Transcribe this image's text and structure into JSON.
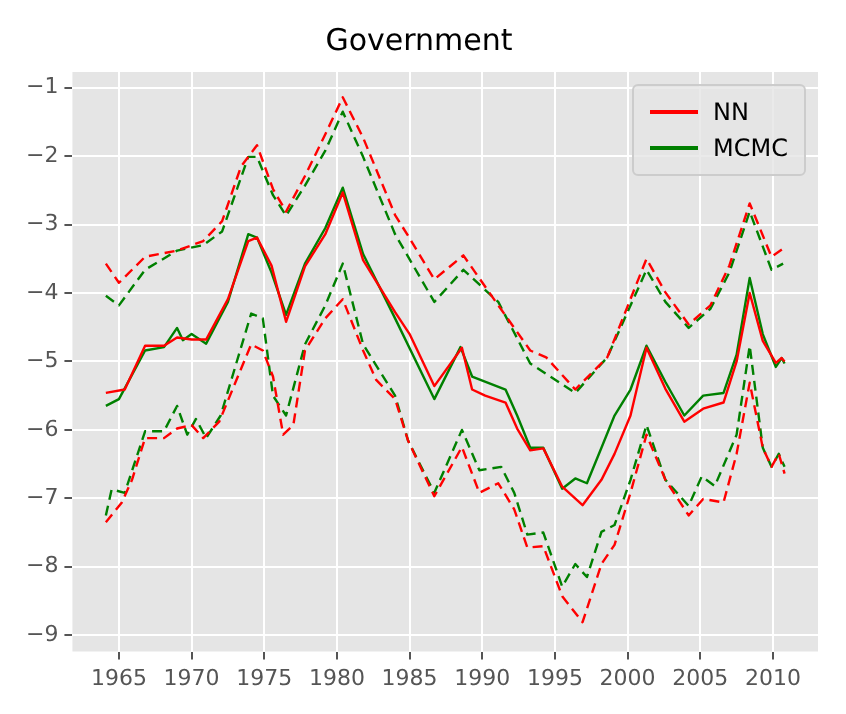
{
  "chart_data": {
    "type": "line",
    "title": "Government",
    "xlim": [
      1961.8,
      2013.1
    ],
    "ylim": [
      -9.24,
      -0.77
    ],
    "xticks": [
      1965,
      1970,
      1975,
      1980,
      1985,
      1990,
      1995,
      2000,
      2005,
      2010
    ],
    "yticks": [
      -9,
      -8,
      -7,
      -6,
      -5,
      -4,
      -3,
      -2,
      -1
    ],
    "grid": true,
    "legend": "top right",
    "series": [
      {
        "name": "NN",
        "color": "#ff0000",
        "line_style": "solid",
        "x": [
          1964.1,
          1965.4,
          1966.8,
          1968.1,
          1969,
          1970,
          1971,
          1972.5,
          1973.9,
          1974.5,
          1975.5,
          1976.5,
          1977.8,
          1979.2,
          1980.4,
          1981.8,
          1984,
          1985,
          1986.7,
          1988.6,
          1989.3,
          1990.2,
          1991.6,
          1992.4,
          1993.3,
          1994.2,
          1995.5,
          1996.9,
          1998.2,
          1999.1,
          2000.2,
          2001.3,
          2002.6,
          2003.9,
          2005.2,
          2006.6,
          2007.5,
          2008.4,
          2009.3,
          2010.2,
          2010.6,
          2010.8
        ],
        "values": [
          -5.46,
          -5.41,
          -4.77,
          -4.77,
          -4.65,
          -4.68,
          -4.68,
          -4.09,
          -3.24,
          -3.19,
          -3.6,
          -4.42,
          -3.61,
          -3.14,
          -2.53,
          -3.52,
          -4.28,
          -4.6,
          -5.36,
          -4.8,
          -5.41,
          -5.5,
          -5.6,
          -5.98,
          -6.3,
          -6.27,
          -6.83,
          -7.1,
          -6.73,
          -6.35,
          -5.79,
          -4.8,
          -5.4,
          -5.88,
          -5.69,
          -5.6,
          -5.0,
          -4.0,
          -4.7,
          -5.02,
          -4.95,
          -5.0
        ]
      },
      {
        "name": "MCMC",
        "color": "#008000",
        "line_style": "solid",
        "x": [
          1964.1,
          1965,
          1966.8,
          1968.1,
          1969,
          1969.4,
          1970,
          1971,
          1972.5,
          1973.9,
          1974.5,
          1975.5,
          1976.5,
          1977.8,
          1979.2,
          1980.4,
          1981.8,
          1984,
          1986.7,
          1988.5,
          1989.3,
          1991.6,
          1992.4,
          1993.3,
          1994.2,
          1995.5,
          1996.4,
          1997.2,
          1998.2,
          1999.1,
          2000.2,
          2001.3,
          2002.6,
          2003.9,
          2005.2,
          2006.6,
          2007.5,
          2008.4,
          2009.3,
          2010.2,
          2010.6,
          2010.8
        ],
        "values": [
          -5.65,
          -5.55,
          -4.84,
          -4.79,
          -4.51,
          -4.69,
          -4.6,
          -4.74,
          -4.13,
          -3.14,
          -3.19,
          -3.7,
          -4.32,
          -3.57,
          -3.05,
          -2.46,
          -3.43,
          -4.37,
          -5.55,
          -4.79,
          -5.22,
          -5.41,
          -5.79,
          -6.26,
          -6.26,
          -6.86,
          -6.71,
          -6.78,
          -6.26,
          -5.79,
          -5.41,
          -4.77,
          -5.3,
          -5.79,
          -5.5,
          -5.46,
          -4.9,
          -3.78,
          -4.6,
          -5.08,
          -4.95,
          -5.03
        ]
      },
      {
        "color": "#ff0000",
        "line_style": "dashed",
        "x": [
          1964.1,
          1965,
          1966.8,
          1969,
          1970.8,
          1972.1,
          1973.4,
          1974.5,
          1975.6,
          1976.5,
          1977.8,
          1979.2,
          1980.4,
          1981.8,
          1984,
          1985,
          1986.7,
          1988.7,
          1991.1,
          1993.3,
          1994.4,
          1996.4,
          1998.6,
          2001.3,
          2002.6,
          2004.2,
          2005.7,
          2007,
          2008.4,
          2009.9,
          2010.7
        ],
        "values": [
          -3.57,
          -3.85,
          -3.47,
          -3.38,
          -3.24,
          -2.95,
          -2.15,
          -1.84,
          -2.48,
          -2.81,
          -2.29,
          -1.68,
          -1.14,
          -1.73,
          -2.86,
          -3.2,
          -3.8,
          -3.45,
          -4.18,
          -4.84,
          -4.94,
          -5.41,
          -4.94,
          -3.5,
          -3.99,
          -4.46,
          -4.18,
          -3.6,
          -2.69,
          -3.47,
          -3.35
        ]
      },
      {
        "color": "#008000",
        "line_style": "dashed",
        "x": [
          1964.1,
          1965,
          1966.8,
          1969,
          1970.8,
          1972.1,
          1973.9,
          1974.5,
          1975.6,
          1976.5,
          1977.8,
          1979.2,
          1980.4,
          1981.8,
          1984,
          1986.7,
          1988.7,
          1991.1,
          1993.3,
          1996.4,
          1998.6,
          2001.3,
          2002.6,
          2004.2,
          2005.7,
          2007,
          2008.4,
          2009.9,
          2010.7
        ],
        "values": [
          -4.04,
          -4.18,
          -3.66,
          -3.38,
          -3.3,
          -3.1,
          -2.01,
          -2.01,
          -2.57,
          -2.87,
          -2.43,
          -1.92,
          -1.35,
          -2.01,
          -3.14,
          -4.13,
          -3.66,
          -4.13,
          -5.03,
          -5.46,
          -4.94,
          -3.66,
          -4.13,
          -4.51,
          -4.23,
          -3.7,
          -2.81,
          -3.66,
          -3.57
        ]
      },
      {
        "color": "#ff0000",
        "line_style": "dashed",
        "x": [
          1964.1,
          1965.2,
          1965.9,
          1966.8,
          1968.1,
          1969,
          1970,
          1970.8,
          1971.9,
          1974.1,
          1974.9,
          1975.6,
          1976.3,
          1977,
          1977.8,
          1979.2,
          1980.4,
          1981.8,
          1982.7,
          1984,
          1984.9,
          1986.7,
          1988.6,
          1989.8,
          1991.1,
          1992.2,
          1993.1,
          1994.2,
          1995.5,
          1996.9,
          1998.2,
          1999.1,
          2000.2,
          2001.3,
          2002.6,
          2004.2,
          2005.2,
          2006.6,
          2007.5,
          2008.4,
          2009.3,
          2009.9,
          2010.4,
          2010.8
        ],
        "values": [
          -7.35,
          -7.06,
          -6.73,
          -6.12,
          -6.12,
          -5.98,
          -5.93,
          -6.12,
          -5.88,
          -4.75,
          -4.84,
          -5.22,
          -6.07,
          -5.93,
          -4.84,
          -4.37,
          -4.09,
          -4.84,
          -5.27,
          -5.55,
          -6.16,
          -6.97,
          -6.25,
          -6.92,
          -6.78,
          -7.16,
          -7.72,
          -7.7,
          -8.43,
          -8.81,
          -7.96,
          -7.68,
          -6.92,
          -6.07,
          -6.73,
          -7.25,
          -7.01,
          -7.06,
          -6.35,
          -5.31,
          -6.26,
          -6.54,
          -6.35,
          -6.64
        ]
      },
      {
        "color": "#008000",
        "line_style": "dashed",
        "x": [
          1964.1,
          1964.5,
          1965.4,
          1966.8,
          1968.1,
          1969,
          1969.7,
          1970.3,
          1971,
          1972,
          1974.1,
          1974.9,
          1975.6,
          1976.5,
          1977.8,
          1979.2,
          1980.4,
          1981.8,
          1984,
          1984.9,
          1986.7,
          1988.6,
          1989.8,
          1991.3,
          1992.2,
          1993.1,
          1994.2,
          1995.5,
          1996.4,
          1997.2,
          1998.2,
          1999.1,
          2000.2,
          2001.3,
          2002.6,
          2004.2,
          2005.1,
          2006,
          2007.5,
          2008.4,
          2009.3,
          2009.9,
          2010.4,
          2010.8
        ],
        "values": [
          -7.25,
          -6.87,
          -6.92,
          -6.02,
          -6.02,
          -5.65,
          -6.07,
          -5.84,
          -6.12,
          -5.79,
          -4.3,
          -4.37,
          -5.5,
          -5.79,
          -4.75,
          -4.18,
          -3.57,
          -4.75,
          -5.5,
          -6.16,
          -6.92,
          -6.0,
          -6.59,
          -6.54,
          -6.92,
          -7.53,
          -7.5,
          -8.29,
          -7.96,
          -8.15,
          -7.49,
          -7.39,
          -6.73,
          -5.93,
          -6.73,
          -7.11,
          -6.68,
          -6.82,
          -6.07,
          -4.77,
          -6.26,
          -6.54,
          -6.35,
          -6.54
        ]
      }
    ]
  }
}
